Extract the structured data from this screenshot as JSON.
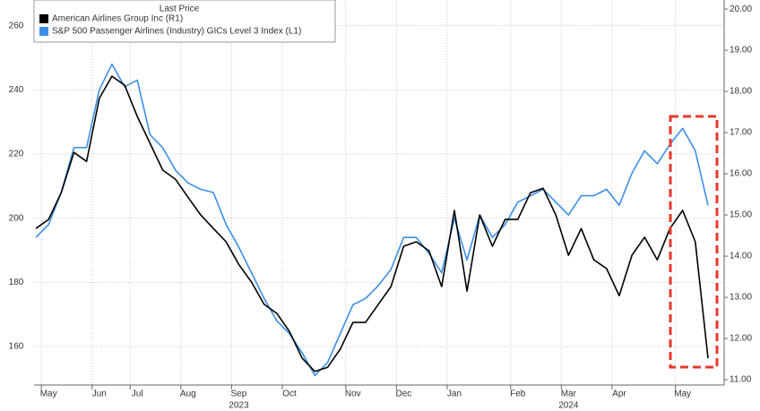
{
  "chart_data": {
    "type": "line",
    "legend_title": "Last Price",
    "categories": [
      null,
      "May",
      null,
      null,
      null,
      "Jun",
      null,
      null,
      "Jul",
      null,
      null,
      null,
      "Aug",
      null,
      null,
      null,
      "Sep",
      null,
      null,
      null,
      "Oct",
      null,
      null,
      null,
      null,
      "Nov",
      null,
      null,
      null,
      "Dec",
      null,
      null,
      null,
      "Jan",
      null,
      null,
      null,
      null,
      "Feb",
      null,
      null,
      null,
      "Mar",
      null,
      null,
      null,
      "Apr",
      null,
      null,
      null,
      null,
      "May",
      null,
      null
    ],
    "year_labels": [
      "2023",
      "2024"
    ],
    "series": [
      {
        "name": "American Airlines Group Inc  (R1)",
        "color": "#000000",
        "axis": "y2",
        "values": [
          14.67,
          14.89,
          15.54,
          16.52,
          16.3,
          17.83,
          18.37,
          18.15,
          17.39,
          16.74,
          16.09,
          15.87,
          15.43,
          15.0,
          14.67,
          14.35,
          13.8,
          13.37,
          12.83,
          12.61,
          12.17,
          11.52,
          11.2,
          11.3,
          11.74,
          12.39,
          12.39,
          12.83,
          13.26,
          14.24,
          14.35,
          14.13,
          13.26,
          15.11,
          13.15,
          15.0,
          14.24,
          14.89,
          14.89,
          15.54,
          15.65,
          15.0,
          14.02,
          14.67,
          13.91,
          13.7,
          13.04,
          14.02,
          14.46,
          13.91,
          14.67,
          15.11,
          14.35,
          11.52
        ]
      },
      {
        "name": "S&P 500 Passenger Airlines (Industry) GICs Level 3 Index  (L1)",
        "color": "#3b8fe8",
        "values": [
          194,
          198,
          208,
          222,
          222,
          240,
          248,
          241,
          243,
          226,
          222,
          215,
          211,
          209,
          208,
          198,
          191,
          183,
          175,
          168,
          164,
          158,
          151,
          155,
          164,
          173,
          175,
          179,
          184,
          194,
          194,
          189,
          183,
          200,
          187,
          201,
          194,
          198,
          205,
          207,
          209,
          205,
          201,
          207,
          207,
          209,
          204,
          214,
          221,
          217,
          223,
          228,
          221,
          204
        ]
      }
    ],
    "ylim": [
      148,
      268
    ],
    "yticks": [
      160,
      180,
      200,
      220,
      240,
      260
    ],
    "y2lim": [
      10.87,
      20.22
    ],
    "y2ticks": [
      {
        "value": 11,
        "label": "11.00"
      },
      {
        "value": 12,
        "label": "12.00"
      },
      {
        "value": 13,
        "label": "13.00"
      },
      {
        "value": 14,
        "label": "14.00"
      },
      {
        "value": 15,
        "label": "15.00"
      },
      {
        "value": 16,
        "label": "16.00"
      },
      {
        "value": 17,
        "label": "17.00"
      },
      {
        "value": 18,
        "label": "18.00"
      },
      {
        "value": 19,
        "label": "19.00"
      },
      {
        "value": 20,
        "label": "20.00"
      }
    ],
    "grid": true
  }
}
